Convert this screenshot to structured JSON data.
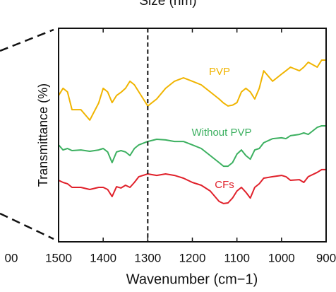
{
  "chart_data": {
    "type": "line",
    "top_fragment": "Size (nm)",
    "left_fragment": "00",
    "xlabel": "Wavenumber (cm−1)",
    "ylabel": "Transmittance (%)",
    "x": [
      1500,
      1490,
      1480,
      1470,
      1450,
      1430,
      1410,
      1400,
      1390,
      1380,
      1370,
      1360,
      1350,
      1340,
      1330,
      1320,
      1300,
      1280,
      1260,
      1240,
      1220,
      1200,
      1180,
      1160,
      1140,
      1130,
      1120,
      1110,
      1100,
      1090,
      1080,
      1070,
      1060,
      1050,
      1040,
      1020,
      1000,
      990,
      980,
      960,
      950,
      940,
      920,
      910,
      900
    ],
    "series": [
      {
        "name": "PVP",
        "color": "#f0b400",
        "values": [
          68.5,
          71.9,
          70.2,
          61.9,
          61.9,
          57.0,
          65,
          71.9,
          70.2,
          65.2,
          68.5,
          70,
          71.9,
          75.2,
          73.5,
          70.2,
          63.6,
          66.9,
          71.9,
          75.2,
          76.8,
          75.2,
          73.5,
          70.2,
          66.9,
          65,
          63.6,
          64,
          65.2,
          70.2,
          71.9,
          70.2,
          66.9,
          71.9,
          80.1,
          75.2,
          78.5,
          80.1,
          81.8,
          80.1,
          81.8,
          84.1,
          81.8,
          85.1,
          85.1
        ]
      },
      {
        "name": "Without PVP",
        "color": "#3cb060",
        "values": [
          45.4,
          43.0,
          43.7,
          42.7,
          43.0,
          42.4,
          43.0,
          43.7,
          42.1,
          37.1,
          42.1,
          42.7,
          42.1,
          40.4,
          43.7,
          45.4,
          47.0,
          48.0,
          47.7,
          47.0,
          47.0,
          45.4,
          43.7,
          40.4,
          37.1,
          35.4,
          35.4,
          37.1,
          41.1,
          43.0,
          40.4,
          38.7,
          43.0,
          43.7,
          46.4,
          48.3,
          48.7,
          48.3,
          49.7,
          50.3,
          51.0,
          50.3,
          53.6,
          54.3,
          54.3
        ]
      },
      {
        "name": "CFs",
        "color": "#e0202a",
        "values": [
          28.8,
          27.8,
          27.2,
          25.5,
          25.5,
          24.5,
          25.5,
          25.5,
          24.5,
          21.2,
          25.8,
          25.2,
          26.5,
          25.5,
          27.8,
          30.5,
          31.8,
          31.1,
          31.8,
          31.1,
          29.8,
          27.8,
          26.5,
          23.8,
          18.9,
          17.9,
          18.2,
          20.5,
          23.8,
          25.5,
          23.2,
          20.5,
          25.5,
          27.2,
          29.8,
          30.5,
          31.1,
          30.5,
          28.8,
          29.1,
          27.8,
          30.5,
          32.5,
          33.8,
          33.8
        ]
      }
    ],
    "xlim": [
      1500,
      900
    ],
    "xticks": [
      1500,
      1400,
      1300,
      1200,
      1100,
      1000,
      900
    ],
    "ylim": [
      0,
      100
    ],
    "vline": 1300
  }
}
